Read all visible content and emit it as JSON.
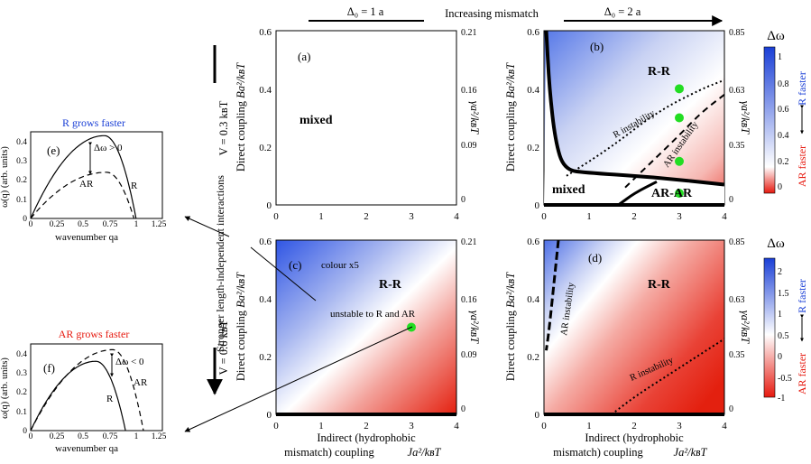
{
  "header": {
    "left_label": "Δ₀ = 1 a",
    "center_label": "Increasing mismatch",
    "right_label": "Δ₀ = 2 a"
  },
  "side": {
    "rows": [
      "V = 0.3 kʙT",
      "V = 0.6 kʙT"
    ],
    "arrow_label": "Stronger length-independent interactions"
  },
  "axes": {
    "xlabel_line1": "Indirect (hydrophobic",
    "xlabel_line2": "mismatch) coupling",
    "xlabel_math": "Ja²/kʙT",
    "ylabel_text": "Direct coupling",
    "ylabel_math": "Ba²/kʙT",
    "right_label": "γa²/kʙT"
  },
  "colorbar": {
    "title": "Δω",
    "top_label": "R faster",
    "bottom_label": "AR faster",
    "ticks_top": [
      "1",
      "0.8",
      "0.6",
      "0.4",
      "0.2",
      "0"
    ],
    "ticks_bottom": [
      "2",
      "1.5",
      "1",
      "0.5",
      "0",
      "-0.5",
      "-1"
    ],
    "colors": {
      "r_faster": "#1a3fd6",
      "ar_faster": "#e6190f",
      "neutral": "#ffffff",
      "marker": "#22dd22"
    }
  },
  "chart_data": [
    {
      "id": "a",
      "type": "heatmap",
      "label": "(a)",
      "xlim": [
        0,
        4
      ],
      "ylim": [
        0,
        0.6
      ],
      "xticks": [
        "0",
        "1",
        "2",
        "3",
        "4"
      ],
      "yticks": [
        "0",
        "0.2",
        "0.4",
        "0.6"
      ],
      "right_ticks": [
        "0.21",
        "0.16",
        "0.09",
        "0"
      ],
      "regions": [
        "mixed"
      ]
    },
    {
      "id": "b",
      "type": "heatmap",
      "label": "(b)",
      "xlim": [
        0,
        4
      ],
      "ylim": [
        0,
        0.6
      ],
      "xticks": [
        "0",
        "1",
        "2",
        "3",
        "4"
      ],
      "yticks": [
        "0",
        "0.2",
        "0.4",
        "0.6"
      ],
      "right_ticks": [
        "0.85",
        "0.63",
        "0.35",
        "0"
      ],
      "regions": [
        "R-R",
        "mixed",
        "AR-AR"
      ],
      "annotations": [
        "R instability",
        "AR instability"
      ],
      "points": [
        {
          "x": 3,
          "y": 0.4
        },
        {
          "x": 3,
          "y": 0.3
        },
        {
          "x": 3,
          "y": 0.15
        },
        {
          "x": 3,
          "y": 0.04
        }
      ],
      "boundary_mixed": [
        {
          "x": 0.05,
          "y": 0.6
        },
        {
          "x": 0.12,
          "y": 0.4
        },
        {
          "x": 0.25,
          "y": 0.22
        },
        {
          "x": 0.45,
          "y": 0.12
        },
        {
          "x": 1.0,
          "y": 0.11
        },
        {
          "x": 2.5,
          "y": 0.095
        },
        {
          "x": 4.0,
          "y": 0.07
        }
      ],
      "boundary_ar": [
        {
          "x": 1.65,
          "y": 0
        },
        {
          "x": 2.0,
          "y": 0.04
        },
        {
          "x": 2.5,
          "y": 0.08
        }
      ],
      "r_instability": [
        {
          "x": 0.5,
          "y": 0.1
        },
        {
          "x": 1.5,
          "y": 0.2
        },
        {
          "x": 2.5,
          "y": 0.32
        },
        {
          "x": 3.5,
          "y": 0.4
        },
        {
          "x": 4.0,
          "y": 0.43
        }
      ],
      "ar_instability": [
        {
          "x": 1.8,
          "y": 0.06
        },
        {
          "x": 2.4,
          "y": 0.15
        },
        {
          "x": 3.0,
          "y": 0.24
        },
        {
          "x": 3.5,
          "y": 0.32
        },
        {
          "x": 4.0,
          "y": 0.38
        }
      ]
    },
    {
      "id": "c",
      "type": "heatmap",
      "label": "(c)",
      "xlim": [
        0,
        4
      ],
      "ylim": [
        0,
        0.6
      ],
      "xticks": [
        "0",
        "1",
        "2",
        "3",
        "4"
      ],
      "yticks": [
        "0",
        "0.2",
        "0.4",
        "0.6"
      ],
      "right_ticks": [
        "0.21",
        "0.16",
        "0.09",
        "0"
      ],
      "regions": [
        "R-R"
      ],
      "annotations": [
        "colour x5",
        "unstable to R and AR"
      ],
      "points": [
        {
          "x": 3,
          "y": 0.3
        }
      ]
    },
    {
      "id": "d",
      "type": "heatmap",
      "label": "(d)",
      "xlim": [
        0,
        4
      ],
      "ylim": [
        0,
        0.6
      ],
      "xticks": [
        "0",
        "1",
        "2",
        "3",
        "4"
      ],
      "yticks": [
        "0",
        "0.2",
        "0.4",
        "0.6"
      ],
      "right_ticks": [
        "0.85",
        "0.63",
        "0.35",
        "0"
      ],
      "regions": [
        "R-R"
      ],
      "annotations": [
        "AR instability",
        "R instability"
      ],
      "ar_instability": [
        {
          "x": 0.32,
          "y": 0.6
        },
        {
          "x": 0.22,
          "y": 0.45
        },
        {
          "x": 0.12,
          "y": 0.3
        },
        {
          "x": 0.05,
          "y": 0.22
        }
      ],
      "r_instability": [
        {
          "x": 1.5,
          "y": 0
        },
        {
          "x": 2.0,
          "y": 0.06
        },
        {
          "x": 2.8,
          "y": 0.14
        },
        {
          "x": 3.5,
          "y": 0.21
        },
        {
          "x": 4.0,
          "y": 0.26
        }
      ]
    },
    {
      "id": "e",
      "type": "line",
      "label": "(e)",
      "title": "R grows faster",
      "xlabel": "wavenumber qa",
      "ylabel": "ω(q) (arb. units)",
      "xlim": [
        0,
        1.25
      ],
      "ylim": [
        0,
        0.45
      ],
      "xticks": [
        "0",
        "0.25",
        "0.5",
        "0.75",
        "1",
        "1.25"
      ],
      "yticks": [
        "0",
        "0.1",
        "0.2",
        "0.3",
        "0.4"
      ],
      "annotation": "Δω > 0",
      "series": [
        {
          "name": "R",
          "style": "solid",
          "peak_q": 0.7,
          "peak": 0.43,
          "root": 1.0
        },
        {
          "name": "AR",
          "style": "dashed",
          "peak_q": 0.72,
          "peak": 0.24,
          "root": 0.98
        }
      ]
    },
    {
      "id": "f",
      "type": "line",
      "label": "(f)",
      "title": "AR grows faster",
      "xlabel": "wavenumber qa",
      "ylabel": "ω(q) (arb. units)",
      "xlim": [
        0,
        1.25
      ],
      "ylim": [
        0,
        0.45
      ],
      "xticks": [
        "0",
        "0.25",
        "0.5",
        "0.75",
        "1",
        "1.25"
      ],
      "yticks": [
        "0",
        "0.1",
        "0.2",
        "0.3",
        "0.4"
      ],
      "annotation": "Δω < 0",
      "series": [
        {
          "name": "R",
          "style": "solid",
          "peak_q": 0.62,
          "peak": 0.36,
          "root": 0.9
        },
        {
          "name": "AR",
          "style": "dashed",
          "peak_q": 0.78,
          "peak": 0.42,
          "root": 1.07
        }
      ]
    }
  ]
}
